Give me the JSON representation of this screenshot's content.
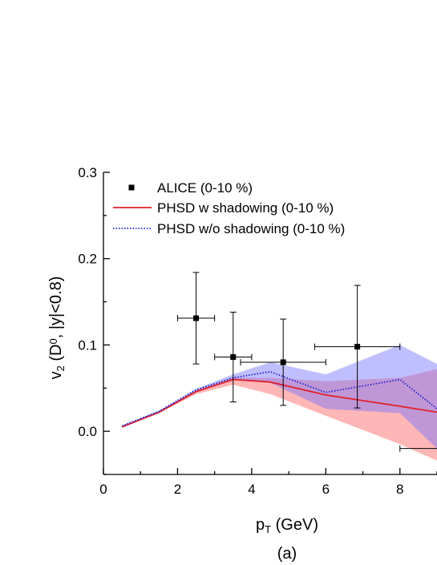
{
  "chart_data": {
    "type": "scatter",
    "title": "",
    "xlabel": {
      "main": "p",
      "sub": "T",
      "rest": " (GeV)"
    },
    "ylabel": {
      "v": "v",
      "sub": "2",
      "open": " (D",
      "sup": "0",
      "rest": ", |y|<0.8)"
    },
    "panel_label": "(a)",
    "xlim": [
      0,
      9
    ],
    "ylim": [
      -0.05,
      0.3
    ],
    "x_ticks": [
      {
        "value": 0,
        "label": "0"
      },
      {
        "value": 2,
        "label": "2"
      },
      {
        "value": 4,
        "label": "4"
      },
      {
        "value": 6,
        "label": "6"
      },
      {
        "value": 8,
        "label": "8"
      }
    ],
    "y_ticks": [
      {
        "value": 0.0,
        "label": "0.0"
      },
      {
        "value": 0.1,
        "label": "0.1"
      },
      {
        "value": 0.2,
        "label": "0.2"
      },
      {
        "value": 0.3,
        "label": "0.3"
      }
    ],
    "legend": {
      "position": "top-left",
      "entries": [
        {
          "label": "ALICE (0-10 %)",
          "style": "marker"
        },
        {
          "label": "PHSD w shadowing (0-10 %)",
          "style": "solid",
          "color": "#e0202a"
        },
        {
          "label": "PHSD w/o shadowing (0-10 %)",
          "style": "dotted",
          "color": "#2020d0"
        }
      ]
    },
    "alice": [
      {
        "x": 2.5,
        "y": 0.131,
        "xerr": 0.5,
        "ylow": 0.078,
        "yhigh": 0.184
      },
      {
        "x": 3.5,
        "y": 0.086,
        "xerr": 0.5,
        "ylow": 0.034,
        "yhigh": 0.138
      },
      {
        "x": 4.85,
        "y": 0.08,
        "xerr": 1.15,
        "ylow": 0.03,
        "yhigh": 0.13
      },
      {
        "x": 6.85,
        "y": 0.098,
        "xerr": 1.15,
        "ylow": 0.027,
        "yhigh": 0.169
      },
      {
        "x": 9.5,
        "y": -0.02,
        "xerr": 1.5,
        "ylow": -0.06,
        "yhigh": 0.02
      }
    ],
    "series": [
      {
        "name": "PHSD w shadowing (0-10 %)",
        "color": "#e0202a",
        "band_color": "#ff6e6e",
        "x": [
          0.5,
          1.5,
          2.5,
          3.5,
          4.5,
          6.0,
          8.0,
          9.0
        ],
        "y": [
          0.005,
          0.022,
          0.046,
          0.06,
          0.057,
          0.042,
          0.029,
          0.022
        ],
        "upper": [
          0.006,
          0.023,
          0.047,
          0.062,
          0.062,
          0.058,
          0.062,
          0.072
        ],
        "lower": [
          0.004,
          0.021,
          0.043,
          0.054,
          0.043,
          0.018,
          -0.015,
          -0.034
        ]
      },
      {
        "name": "PHSD w/o shadowing (0-10 %)",
        "color": "#2020d0",
        "band_color": "#7070ff",
        "x": [
          0.5,
          1.5,
          2.5,
          3.5,
          4.5,
          6.0,
          8.0,
          9.0
        ],
        "y": [
          0.006,
          0.023,
          0.048,
          0.062,
          0.069,
          0.045,
          0.06,
          0.026
        ],
        "upper": [
          0.007,
          0.024,
          0.049,
          0.066,
          0.08,
          0.066,
          0.1,
          0.078
        ],
        "lower": [
          0.005,
          0.022,
          0.046,
          0.06,
          0.056,
          0.026,
          0.021,
          -0.02
        ]
      }
    ]
  }
}
